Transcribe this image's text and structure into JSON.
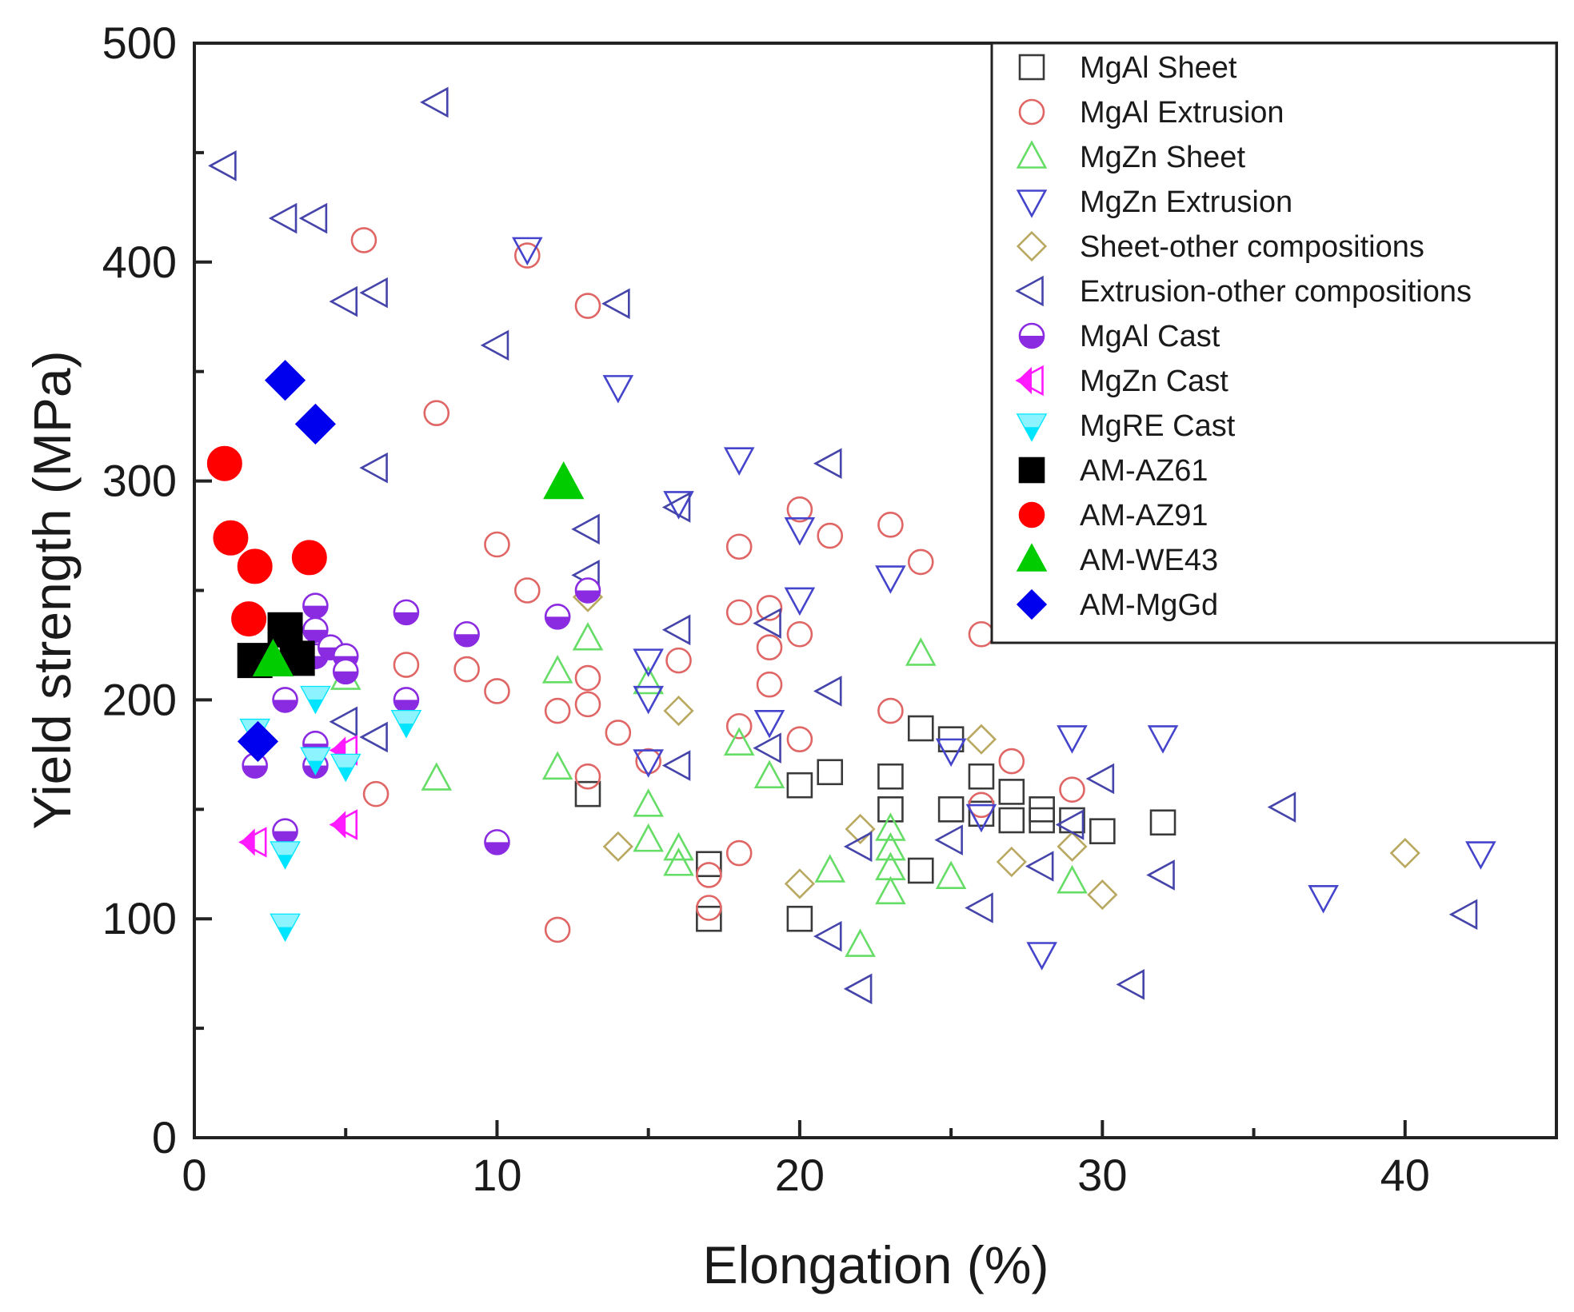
{
  "chart_data": {
    "type": "scatter",
    "xlabel": "Elongation (%)",
    "ylabel": "Yield strength (MPa)",
    "xlim": [
      0,
      45
    ],
    "ylim": [
      0,
      500
    ],
    "x_ticks": [
      "0",
      "10",
      "20",
      "30",
      "40"
    ],
    "y_ticks": [
      "0",
      "100",
      "200",
      "300",
      "400",
      "500"
    ],
    "legend_position": "top-right",
    "series": [
      {
        "name": "MgAl Sheet",
        "marker": "square",
        "filled": false,
        "color": "#3a3a3a",
        "points": [
          [
            13,
            157
          ],
          [
            17,
            125
          ],
          [
            17,
            100
          ],
          [
            20,
            100
          ],
          [
            20,
            161
          ],
          [
            21,
            167
          ],
          [
            23,
            165
          ],
          [
            23,
            150
          ],
          [
            24,
            187
          ],
          [
            24,
            122
          ],
          [
            25,
            182
          ],
          [
            25,
            150
          ],
          [
            26,
            165
          ],
          [
            26,
            148
          ],
          [
            27,
            145
          ],
          [
            27,
            158
          ],
          [
            28,
            150
          ],
          [
            28,
            145
          ],
          [
            29,
            145
          ],
          [
            30,
            140
          ],
          [
            32,
            144
          ]
        ]
      },
      {
        "name": "MgAl Extrusion",
        "marker": "circle",
        "filled": false,
        "color": "#e06666",
        "points": [
          [
            5.6,
            410
          ],
          [
            11,
            403
          ],
          [
            13,
            380
          ],
          [
            8,
            331
          ],
          [
            10,
            271
          ],
          [
            11,
            250
          ],
          [
            6,
            157
          ],
          [
            7,
            216
          ],
          [
            9,
            214
          ],
          [
            10,
            204
          ],
          [
            12,
            195
          ],
          [
            12,
            95
          ],
          [
            13,
            165
          ],
          [
            13,
            198
          ],
          [
            13,
            210
          ],
          [
            14,
            185
          ],
          [
            15,
            172
          ],
          [
            16,
            218
          ],
          [
            17,
            105
          ],
          [
            17,
            120
          ],
          [
            18,
            130
          ],
          [
            18,
            188
          ],
          [
            18,
            240
          ],
          [
            18,
            270
          ],
          [
            19,
            207
          ],
          [
            19,
            224
          ],
          [
            19,
            242
          ],
          [
            20,
            182
          ],
          [
            20,
            230
          ],
          [
            20,
            287
          ],
          [
            21,
            275
          ],
          [
            23,
            195
          ],
          [
            23,
            280
          ],
          [
            24,
            263
          ],
          [
            26,
            230
          ],
          [
            26,
            152
          ],
          [
            27,
            172
          ],
          [
            29,
            159
          ]
        ]
      },
      {
        "name": "MgZn Sheet",
        "marker": "triangle-up",
        "filled": false,
        "color": "#66dd66",
        "points": [
          [
            5,
            210
          ],
          [
            8,
            164
          ],
          [
            12,
            213
          ],
          [
            12,
            169
          ],
          [
            13,
            228
          ],
          [
            15,
            208
          ],
          [
            15,
            152
          ],
          [
            15,
            136
          ],
          [
            16,
            132
          ],
          [
            16,
            125
          ],
          [
            18,
            180
          ],
          [
            19,
            165
          ],
          [
            21,
            122
          ],
          [
            22,
            88
          ],
          [
            23,
            141
          ],
          [
            23,
            132
          ],
          [
            23,
            123
          ],
          [
            23,
            112
          ],
          [
            24,
            221
          ],
          [
            25,
            119
          ],
          [
            29,
            117
          ]
        ]
      },
      {
        "name": "MgZn Extrusion",
        "marker": "triangle-down",
        "filled": false,
        "color": "#4444cc",
        "points": [
          [
            11,
            406
          ],
          [
            14,
            343
          ],
          [
            16,
            290
          ],
          [
            18,
            310
          ],
          [
            20,
            278
          ],
          [
            20,
            246
          ],
          [
            23,
            256
          ],
          [
            15,
            218
          ],
          [
            15,
            201
          ],
          [
            15,
            172
          ],
          [
            19,
            190
          ],
          [
            25,
            177
          ],
          [
            26,
            147
          ],
          [
            28,
            84
          ],
          [
            29,
            183
          ],
          [
            32,
            183
          ],
          [
            37.3,
            110
          ],
          [
            42.5,
            130
          ]
        ]
      },
      {
        "name": "Sheet-other compositions",
        "marker": "diamond",
        "filled": false,
        "color": "#b8a860",
        "points": [
          [
            13,
            247
          ],
          [
            14,
            133
          ],
          [
            16,
            195
          ],
          [
            20,
            116
          ],
          [
            22,
            141
          ],
          [
            26,
            182
          ],
          [
            27,
            126
          ],
          [
            29,
            133
          ],
          [
            30,
            111
          ],
          [
            40,
            130
          ]
        ]
      },
      {
        "name": "Extrusion-other compositions",
        "marker": "triangle-left",
        "filled": false,
        "color": "#4444aa",
        "points": [
          [
            1,
            444
          ],
          [
            8,
            473
          ],
          [
            3,
            420
          ],
          [
            4,
            420
          ],
          [
            5,
            382
          ],
          [
            6,
            386
          ],
          [
            14,
            381
          ],
          [
            10,
            362
          ],
          [
            6,
            306
          ],
          [
            21,
            308
          ],
          [
            13,
            278
          ],
          [
            16,
            288
          ],
          [
            13,
            257
          ],
          [
            16,
            232
          ],
          [
            21,
            204
          ],
          [
            5,
            190
          ],
          [
            6,
            183
          ],
          [
            16,
            170
          ],
          [
            19,
            235
          ],
          [
            19,
            178
          ],
          [
            22,
            133
          ],
          [
            21,
            92
          ],
          [
            22,
            68
          ],
          [
            25,
            136
          ],
          [
            26,
            105
          ],
          [
            28,
            124
          ],
          [
            29,
            143
          ],
          [
            30,
            164
          ],
          [
            31,
            70
          ],
          [
            32,
            120
          ],
          [
            36,
            151
          ],
          [
            42,
            102
          ]
        ]
      },
      {
        "name": "MgAl Cast",
        "marker": "circle-half",
        "filled": true,
        "color": "#8a2be2",
        "points": [
          [
            2,
            170
          ],
          [
            3,
            200
          ],
          [
            3,
            140
          ],
          [
            4,
            243
          ],
          [
            4,
            232
          ],
          [
            4,
            220
          ],
          [
            4,
            180
          ],
          [
            4,
            170
          ],
          [
            4.5,
            224
          ],
          [
            5,
            220
          ],
          [
            5,
            213
          ],
          [
            7,
            240
          ],
          [
            7,
            200
          ],
          [
            9,
            230
          ],
          [
            10,
            135
          ],
          [
            12,
            238
          ],
          [
            13,
            250
          ]
        ]
      },
      {
        "name": "MgZn Cast",
        "marker": "triangle-left-half",
        "filled": true,
        "color": "#ff1aff",
        "points": [
          [
            2,
            135
          ],
          [
            5,
            143
          ],
          [
            5,
            177
          ]
        ]
      },
      {
        "name": "MgRE Cast",
        "marker": "triangle-down-half",
        "filled": true,
        "color": "#00e5ff",
        "points": [
          [
            2,
            186
          ],
          [
            3,
            130
          ],
          [
            3,
            97
          ],
          [
            4,
            201
          ],
          [
            4,
            173
          ],
          [
            5,
            170
          ],
          [
            7,
            190
          ]
        ]
      },
      {
        "name": "AM-AZ61",
        "marker": "square",
        "filled": true,
        "color": "#000000",
        "points": [
          [
            2,
            218
          ],
          [
            3,
            232
          ],
          [
            3.4,
            219
          ]
        ]
      },
      {
        "name": "AM-AZ91",
        "marker": "circle",
        "filled": true,
        "color": "#ff0000",
        "points": [
          [
            1,
            308
          ],
          [
            1.2,
            274
          ],
          [
            2,
            261
          ],
          [
            1.8,
            237
          ],
          [
            3.8,
            265
          ]
        ]
      },
      {
        "name": "AM-WE43",
        "marker": "triangle-up",
        "filled": true,
        "color": "#00cc00",
        "points": [
          [
            12.2,
            299
          ],
          [
            2.6,
            218
          ]
        ]
      },
      {
        "name": "AM-MgGd",
        "marker": "diamond",
        "filled": true,
        "color": "#0000ee",
        "points": [
          [
            3,
            346
          ],
          [
            4,
            326
          ],
          [
            2.1,
            181
          ]
        ]
      }
    ]
  }
}
